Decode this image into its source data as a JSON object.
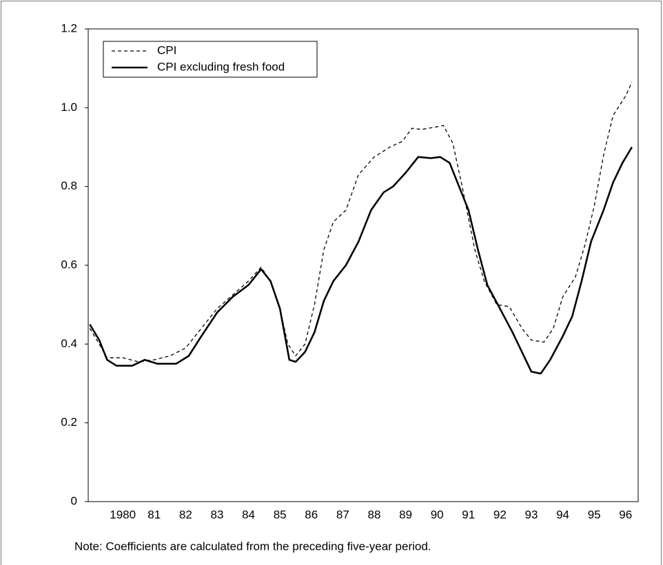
{
  "chart_data": {
    "type": "line",
    "series": [
      {
        "name": "CPI",
        "color": "#000000",
        "dash": "5,4",
        "width": 1.3,
        "x": [
          1979.45,
          1979.75,
          1980.0,
          1980.5,
          1981.0,
          1981.5,
          1982.0,
          1982.5,
          1983.0,
          1983.5,
          1984.0,
          1984.5,
          1984.9,
          1985.2,
          1985.5,
          1985.75,
          1986.0,
          1986.3,
          1986.6,
          1986.9,
          1987.2,
          1987.6,
          1988.0,
          1988.5,
          1989.0,
          1989.4,
          1989.7,
          1990.0,
          1990.4,
          1990.7,
          1991.0,
          1991.3,
          1991.7,
          1992.0,
          1992.4,
          1992.8,
          1993.2,
          1993.5,
          1993.9,
          1994.2,
          1994.5,
          1994.9,
          1995.2,
          1995.5,
          1995.8,
          1996.1,
          1996.5,
          1996.7
        ],
        "values": [
          0.44,
          0.4,
          0.365,
          0.365,
          0.355,
          0.36,
          0.37,
          0.39,
          0.44,
          0.49,
          0.525,
          0.56,
          0.595,
          0.56,
          0.49,
          0.4,
          0.37,
          0.4,
          0.5,
          0.64,
          0.71,
          0.74,
          0.83,
          0.875,
          0.9,
          0.915,
          0.948,
          0.945,
          0.95,
          0.955,
          0.91,
          0.8,
          0.64,
          0.56,
          0.5,
          0.495,
          0.44,
          0.41,
          0.405,
          0.44,
          0.52,
          0.57,
          0.65,
          0.75,
          0.88,
          0.98,
          1.03,
          1.065
        ]
      },
      {
        "name": "CPI excluding fresh food",
        "color": "#000000",
        "dash": "none",
        "width": 2.6,
        "x": [
          1979.45,
          1979.75,
          1980.0,
          1980.3,
          1980.8,
          1981.2,
          1981.6,
          1982.2,
          1982.6,
          1983.0,
          1983.5,
          1984.0,
          1984.5,
          1984.9,
          1985.2,
          1985.5,
          1985.8,
          1986.0,
          1986.3,
          1986.6,
          1986.9,
          1987.2,
          1987.6,
          1988.0,
          1988.4,
          1988.8,
          1989.1,
          1989.5,
          1989.9,
          1990.3,
          1990.6,
          1990.9,
          1991.2,
          1991.5,
          1991.8,
          1992.1,
          1992.5,
          1992.9,
          1993.2,
          1993.5,
          1993.8,
          1994.1,
          1994.5,
          1994.8,
          1995.1,
          1995.4,
          1995.8,
          1996.1,
          1996.4,
          1996.7
        ],
        "values": [
          0.45,
          0.41,
          0.36,
          0.345,
          0.345,
          0.36,
          0.35,
          0.35,
          0.37,
          0.42,
          0.48,
          0.52,
          0.55,
          0.59,
          0.56,
          0.49,
          0.36,
          0.355,
          0.38,
          0.43,
          0.51,
          0.56,
          0.6,
          0.66,
          0.74,
          0.785,
          0.8,
          0.835,
          0.875,
          0.872,
          0.875,
          0.86,
          0.8,
          0.74,
          0.64,
          0.55,
          0.49,
          0.43,
          0.38,
          0.33,
          0.325,
          0.36,
          0.42,
          0.47,
          0.56,
          0.66,
          0.74,
          0.81,
          0.86,
          0.9
        ]
      }
    ],
    "xlim": [
      1979.4,
      1996.9
    ],
    "xticks": [
      {
        "value": 1980.5,
        "label": "1980"
      },
      {
        "value": 1981.5,
        "label": "81"
      },
      {
        "value": 1982.5,
        "label": "82"
      },
      {
        "value": 1983.5,
        "label": "83"
      },
      {
        "value": 1984.5,
        "label": "84"
      },
      {
        "value": 1985.5,
        "label": "85"
      },
      {
        "value": 1986.5,
        "label": "86"
      },
      {
        "value": 1987.5,
        "label": "87"
      },
      {
        "value": 1988.5,
        "label": "88"
      },
      {
        "value": 1989.5,
        "label": "89"
      },
      {
        "value": 1990.5,
        "label": "90"
      },
      {
        "value": 1991.5,
        "label": "91"
      },
      {
        "value": 1992.5,
        "label": "92"
      },
      {
        "value": 1993.5,
        "label": "93"
      },
      {
        "value": 1994.5,
        "label": "94"
      },
      {
        "value": 1995.5,
        "label": "95"
      },
      {
        "value": 1996.5,
        "label": "96"
      }
    ],
    "ylim": [
      0,
      1.2
    ],
    "yticks": [
      0,
      0.2,
      0.4,
      0.6,
      0.8,
      {
        "value": 1,
        "label": "1.0"
      },
      1.2
    ],
    "note": "Note: Coefficients are calculated from the preceding five-year period.",
    "legend": "top-left"
  }
}
